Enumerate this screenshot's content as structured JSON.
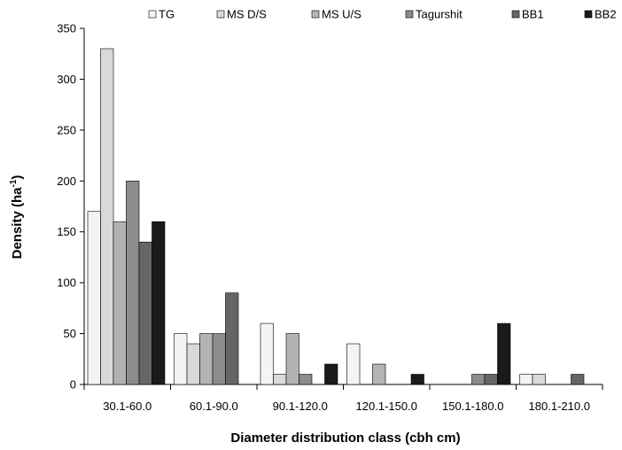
{
  "chart_data": {
    "type": "bar",
    "title": "",
    "xlabel": "Diameter distribution class (cbh cm)",
    "ylabel": {
      "main": "Density (ha",
      "sup": "-1",
      "end": ")"
    },
    "ylim": [
      0,
      350
    ],
    "yticks": [
      0,
      50,
      100,
      150,
      200,
      250,
      300,
      350
    ],
    "grid": false,
    "legend_position": "top",
    "categories": [
      "30.1-60.0",
      "60.1-90.0",
      "90.1-120.0",
      "120.1-150.0",
      "150.1-180.0",
      "180.1-210.0"
    ],
    "series": [
      {
        "name": "TG",
        "color": "#f4f4f4",
        "values": [
          170,
          50,
          60,
          40,
          0,
          10
        ]
      },
      {
        "name": "MS D/S",
        "color": "#d9d9d9",
        "values": [
          330,
          40,
          10,
          0,
          0,
          10
        ]
      },
      {
        "name": "MS U/S",
        "color": "#b3b3b3",
        "values": [
          160,
          50,
          50,
          20,
          0,
          0
        ]
      },
      {
        "name": "Tagurshit",
        "color": "#8c8c8c",
        "values": [
          200,
          50,
          10,
          0,
          10,
          0
        ]
      },
      {
        "name": "BB1",
        "color": "#666666",
        "values": [
          140,
          90,
          0,
          0,
          10,
          10
        ]
      },
      {
        "name": "BB2",
        "color": "#1a1a1a",
        "values": [
          160,
          0,
          20,
          10,
          60,
          0
        ]
      }
    ]
  }
}
